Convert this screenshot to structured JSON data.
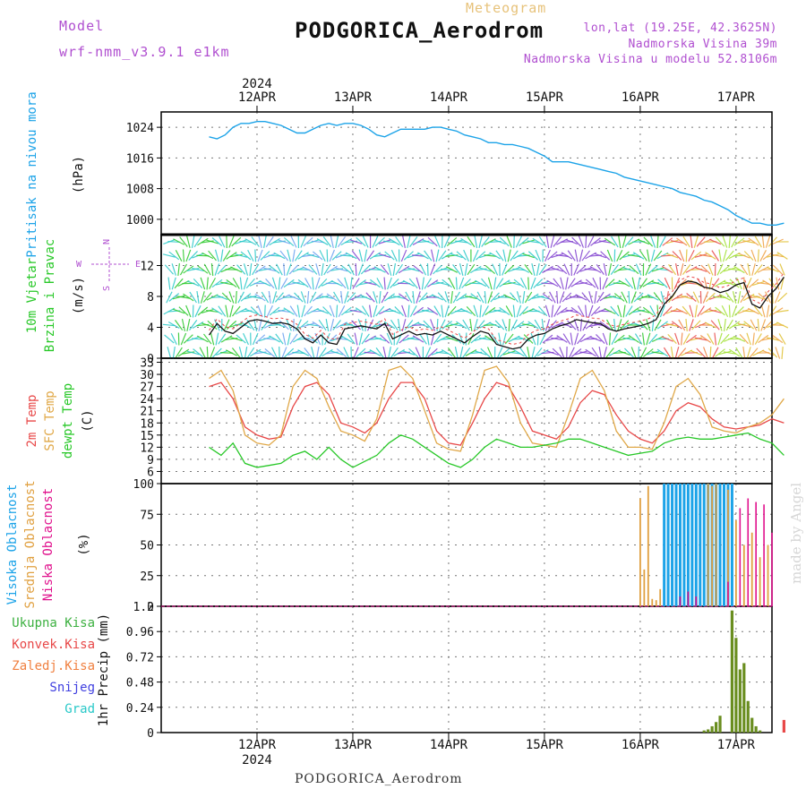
{
  "header": {
    "model_label": "Model",
    "model_name": "wrf-nmm_v3.9.1 e1km",
    "chart_kind": "Meteogram",
    "station": "PODGORICA_Aerodrom",
    "coords": "lon,lat (19.25E, 42.3625N)",
    "elevation": "Nadmorska Visina 39m",
    "model_elevation": "Nadmorska Visina u modelu 52.8106m"
  },
  "footer": {
    "station": "PODGORICA_Aerodrom",
    "credit": "made by Angel"
  },
  "colors": {
    "pressure": "#1ca3e8",
    "temp2m": "#e84848",
    "sfc_temp": "#e0a848",
    "dewpoint": "#28c828",
    "high_cloud": "#1ca3e8",
    "mid_cloud": "#e0a040",
    "low_cloud": "#e0108c",
    "total_precip": "#3cb040",
    "conv_precip": "#e84848",
    "frozen_precip": "#f08040",
    "snow": "#4040e0",
    "hail": "#28c8c8",
    "header_purple": "#b04fd0",
    "header_gold": "#e7c27a",
    "bar_precip": "#6a8e20"
  },
  "chart_data": [
    {
      "panel": "pressure",
      "type": "line",
      "ylabel": "Pritisak na nivou mora",
      "unit": "(hPa)",
      "ylim": [
        996,
        1028
      ],
      "yticks": [
        1000,
        1008,
        1016,
        1024
      ],
      "series": [
        {
          "x": [
            0,
            2,
            4,
            6,
            8,
            10,
            12,
            14,
            16,
            18,
            20,
            22,
            24,
            26,
            28,
            30,
            32,
            34,
            36,
            38,
            40,
            42,
            44,
            46,
            48,
            50,
            52,
            54,
            56,
            58,
            60,
            62,
            64,
            66,
            68,
            70,
            72,
            74,
            76,
            78,
            80,
            82,
            84,
            86,
            88,
            90,
            92,
            94,
            96,
            98,
            100,
            102,
            104,
            106,
            108,
            110,
            112,
            114,
            116,
            118,
            120,
            122,
            124,
            126,
            128,
            130,
            132,
            134,
            136,
            138,
            140,
            142,
            144
          ],
          "values": [
            1021.5,
            1021,
            1022,
            1024,
            1025,
            1025,
            1025.5,
            1025.5,
            1025,
            1024.5,
            1023.5,
            1022.5,
            1022.5,
            1023.5,
            1024.5,
            1025,
            1024.5,
            1025,
            1025,
            1024.5,
            1023.5,
            1022,
            1021.5,
            1022.5,
            1023.5,
            1023.5,
            1023.5,
            1023.5,
            1024,
            1024,
            1023.5,
            1023,
            1022,
            1021.5,
            1021,
            1020,
            1020,
            1019.5,
            1019.5,
            1019,
            1018.5,
            1017.5,
            1016.5,
            1015,
            1015,
            1015,
            1014.5,
            1014,
            1013.5,
            1013,
            1012.5,
            1012,
            1011,
            1010.5,
            1010,
            1009.5,
            1009,
            1008.5,
            1008,
            1007,
            1006.5,
            1006,
            1005,
            1004.5,
            1003.5,
            1002.5,
            1001,
            1000,
            999,
            999,
            998.5,
            998.5,
            999
          ]
        }
      ]
    },
    {
      "panel": "wind",
      "type": "line",
      "ylabel": "10m Vjetar Brzina i Pravac",
      "unit": "(m/s)",
      "ylim": [
        0,
        16
      ],
      "yticks": [
        0,
        4,
        8,
        12
      ],
      "compass": [
        "N",
        "W",
        "E",
        "S"
      ],
      "series": [
        {
          "name": "speed",
          "x": [
            0,
            2,
            4,
            6,
            8,
            10,
            12,
            14,
            16,
            18,
            20,
            22,
            24,
            26,
            28,
            30,
            32,
            34,
            36,
            38,
            40,
            42,
            44,
            46,
            48,
            50,
            52,
            54,
            56,
            58,
            60,
            62,
            64,
            66,
            68,
            70,
            72,
            74,
            76,
            78,
            80,
            82,
            84,
            86,
            88,
            90,
            92,
            94,
            96,
            98,
            100,
            102,
            104,
            106,
            108,
            110,
            112,
            114,
            116,
            118,
            120,
            122,
            124,
            126,
            128,
            130,
            132,
            134,
            136,
            138,
            140,
            142,
            144
          ],
          "values": [
            3,
            4.5,
            3.5,
            3.2,
            4,
            4.8,
            5,
            4.8,
            4.5,
            4.6,
            4.4,
            3.8,
            2.5,
            2,
            3,
            2,
            1.8,
            3.8,
            4,
            4.2,
            4,
            3.8,
            4.5,
            2.5,
            3,
            3.5,
            3,
            3.2,
            3,
            3.5,
            3,
            2.5,
            2,
            2.8,
            3.5,
            3.2,
            1.8,
            1.5,
            1.2,
            1.4,
            2.5,
            3,
            3.2,
            3.8,
            4.2,
            4.5,
            5,
            4.8,
            4.6,
            4.5,
            3.8,
            3.5,
            3.8,
            4,
            4.2,
            4.5,
            5,
            7,
            8,
            9.5,
            10,
            9.8,
            9.2,
            9,
            8.5,
            8.8,
            9.5,
            9.8,
            7,
            6.5,
            8,
            9,
            10.5
          ]
        }
      ]
    },
    {
      "panel": "temperature",
      "type": "line",
      "ylabels": [
        "2m Temp",
        "SFC Temp",
        "dewpt Temp"
      ],
      "unit": "(C)",
      "ylim": [
        3,
        34
      ],
      "yticks": [
        6,
        9,
        12,
        15,
        18,
        21,
        24,
        27,
        30,
        33
      ],
      "x": [
        0,
        3,
        6,
        9,
        12,
        15,
        18,
        21,
        24,
        27,
        30,
        33,
        36,
        39,
        42,
        45,
        48,
        51,
        54,
        57,
        60,
        63,
        66,
        69,
        72,
        75,
        78,
        81,
        84,
        87,
        90,
        93,
        96,
        99,
        102,
        105,
        108,
        111,
        114,
        117,
        120,
        123,
        126,
        129,
        132,
        135,
        138,
        141,
        144
      ],
      "series": [
        {
          "name": "2m Temp",
          "values": [
            27,
            28,
            24,
            17,
            15,
            14,
            14.5,
            22,
            27,
            28,
            25,
            18,
            17,
            15.5,
            18,
            24,
            28,
            28,
            24,
            16,
            13,
            12.5,
            18,
            24,
            28,
            27,
            22,
            16,
            15,
            14,
            17,
            23,
            26,
            25,
            20,
            16,
            14,
            13,
            16,
            21,
            23,
            22,
            19,
            17,
            16.5,
            17,
            17.5,
            19,
            18
          ]
        },
        {
          "name": "SFC Temp",
          "values": [
            29,
            31,
            26,
            15,
            13,
            12.5,
            15,
            27,
            31,
            29,
            22,
            16,
            15,
            13.5,
            19,
            31,
            32,
            29,
            21,
            13,
            11.5,
            11,
            20,
            31,
            32,
            28,
            18,
            13,
            12.5,
            12,
            20,
            29,
            31,
            26,
            16,
            12,
            12,
            11.5,
            18,
            27,
            29,
            25,
            17,
            16,
            15.5,
            17,
            18,
            20,
            24
          ]
        },
        {
          "name": "dewpt Temp",
          "values": [
            12,
            10,
            13,
            8,
            7,
            7.5,
            8,
            10,
            11,
            9,
            12,
            9,
            7,
            8.5,
            10,
            13,
            15,
            14,
            12,
            10,
            8,
            7,
            9,
            12,
            14,
            13,
            12,
            12,
            12.5,
            13,
            14,
            14,
            13,
            12,
            11,
            10,
            10.5,
            11,
            13,
            14,
            14.5,
            14,
            14,
            14.5,
            15,
            15.5,
            14,
            13,
            10
          ]
        }
      ]
    },
    {
      "panel": "cloud",
      "type": "bar",
      "ylabels": [
        "Visoka Oblacnost",
        "Srednja Oblacnost",
        "Niska Oblacnost"
      ],
      "unit": "(%)",
      "ylim": [
        0,
        100
      ],
      "yticks": [
        0,
        25,
        50,
        75,
        100
      ],
      "series": [
        {
          "name": "Visoka Oblacnost",
          "x": [
            114,
            115,
            116,
            117,
            118,
            119,
            120,
            121,
            122,
            123,
            124,
            125,
            126,
            127,
            128,
            129,
            130,
            131
          ],
          "values": [
            100,
            100,
            100,
            100,
            100,
            100,
            100,
            100,
            100,
            100,
            100,
            100,
            100,
            100,
            100,
            100,
            100,
            100
          ]
        },
        {
          "name": "Srednja Oblacnost",
          "x": [
            108,
            109,
            110,
            111,
            112,
            113,
            125,
            126,
            127,
            130,
            132,
            134,
            136,
            138,
            140
          ],
          "values": [
            88,
            30,
            98,
            6,
            5,
            14,
            100,
            98,
            100,
            95,
            70,
            50,
            60,
            40,
            50
          ]
        },
        {
          "name": "Niska Oblacnost",
          "x": [
            118,
            120,
            122,
            130,
            133,
            135,
            137,
            139,
            141
          ],
          "values": [
            8,
            12,
            8,
            20,
            80,
            88,
            85,
            83,
            60
          ]
        }
      ]
    },
    {
      "panel": "precip",
      "type": "bar",
      "ylabels": [
        "Ukupna Kisa",
        "Konvek.Kisa",
        "Zaledj.Kisa",
        "Snijeg",
        "Grad"
      ],
      "unit": "1hr Precip (mm)",
      "ylim": [
        0,
        1.2
      ],
      "yticks": [
        0,
        0.24,
        0.48,
        0.72,
        0.96,
        1.2
      ],
      "series": [
        {
          "name": "Ukupna Kisa",
          "x": [
            124,
            125,
            126,
            127,
            128,
            129,
            130,
            131,
            132,
            133,
            134,
            135,
            136,
            137,
            138
          ],
          "values": [
            0.02,
            0.03,
            0.06,
            0.1,
            0.16,
            0,
            0,
            1.16,
            0.9,
            0.6,
            0.66,
            0.3,
            0.14,
            0.06,
            0.02
          ]
        },
        {
          "name": "Konvek.Kisa",
          "x": [
            144
          ],
          "values": [
            0.12
          ]
        }
      ]
    }
  ],
  "time_axis": {
    "year": "2024",
    "days": [
      "12APR",
      "13APR",
      "14APR",
      "15APR",
      "16APR",
      "17APR"
    ]
  }
}
